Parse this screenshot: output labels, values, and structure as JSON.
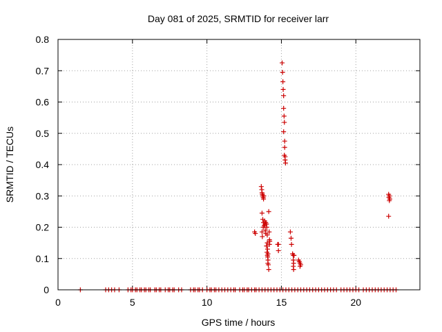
{
  "chart_data": {
    "type": "scatter",
    "title": "Day 081 of 2025, SRMTID for receiver larr",
    "xlabel": "GPS time / hours",
    "ylabel": "SRMTID / TECUs",
    "xlim": [
      0,
      24.3
    ],
    "ylim": [
      0,
      0.8
    ],
    "xticks": [
      0,
      5,
      10,
      15,
      20
    ],
    "yticks": [
      0,
      0.1,
      0.2,
      0.3,
      0.4,
      0.5,
      0.6,
      0.7,
      0.8
    ],
    "xtick_labels": [
      "0",
      "5",
      "10",
      "15",
      "20"
    ],
    "ytick_labels": [
      "0",
      "0.1",
      "0.2",
      "0.3",
      "0.4",
      "0.5",
      "0.6",
      "0.7",
      "0.8"
    ],
    "grid": true,
    "marker": "+",
    "marker_color": "#cc0000",
    "series": [
      {
        "name": "SRMTID",
        "points": [
          [
            1.5,
            0
          ],
          [
            3.2,
            0
          ],
          [
            3.4,
            0
          ],
          [
            3.6,
            0
          ],
          [
            3.8,
            0
          ],
          [
            4.1,
            0
          ],
          [
            4.7,
            0
          ],
          [
            4.9,
            0
          ],
          [
            5.0,
            0
          ],
          [
            5.2,
            0
          ],
          [
            5.3,
            0
          ],
          [
            5.5,
            0
          ],
          [
            5.6,
            0
          ],
          [
            5.8,
            0
          ],
          [
            5.9,
            0
          ],
          [
            6.1,
            0
          ],
          [
            6.2,
            0
          ],
          [
            6.5,
            0
          ],
          [
            6.6,
            0
          ],
          [
            6.8,
            0
          ],
          [
            6.9,
            0
          ],
          [
            7.2,
            0
          ],
          [
            7.4,
            0
          ],
          [
            7.5,
            0
          ],
          [
            7.7,
            0
          ],
          [
            7.8,
            0
          ],
          [
            8.1,
            0
          ],
          [
            8.3,
            0
          ],
          [
            8.9,
            0
          ],
          [
            9.1,
            0
          ],
          [
            9.2,
            0
          ],
          [
            9.4,
            0
          ],
          [
            9.5,
            0
          ],
          [
            9.7,
            0
          ],
          [
            10.0,
            0
          ],
          [
            10.2,
            0
          ],
          [
            10.3,
            0
          ],
          [
            10.5,
            0
          ],
          [
            10.6,
            0
          ],
          [
            10.8,
            0
          ],
          [
            11.0,
            0
          ],
          [
            11.2,
            0
          ],
          [
            11.4,
            0
          ],
          [
            11.6,
            0
          ],
          [
            11.8,
            0
          ],
          [
            11.9,
            0
          ],
          [
            12.2,
            0
          ],
          [
            12.4,
            0
          ],
          [
            12.5,
            0
          ],
          [
            12.7,
            0
          ],
          [
            12.8,
            0
          ],
          [
            13.0,
            0
          ],
          [
            13.2,
            0
          ],
          [
            13.3,
            0
          ],
          [
            13.5,
            0
          ],
          [
            13.7,
            0
          ],
          [
            13.9,
            0
          ],
          [
            14.1,
            0
          ],
          [
            14.3,
            0
          ],
          [
            14.5,
            0
          ],
          [
            14.7,
            0
          ],
          [
            14.9,
            0
          ],
          [
            15.1,
            0
          ],
          [
            15.3,
            0
          ],
          [
            15.5,
            0
          ],
          [
            15.7,
            0
          ],
          [
            15.9,
            0
          ],
          [
            16.1,
            0
          ],
          [
            16.3,
            0
          ],
          [
            16.5,
            0
          ],
          [
            16.7,
            0
          ],
          [
            16.9,
            0
          ],
          [
            17.1,
            0
          ],
          [
            17.3,
            0
          ],
          [
            17.5,
            0
          ],
          [
            17.7,
            0
          ],
          [
            17.9,
            0
          ],
          [
            18.1,
            0
          ],
          [
            18.3,
            0
          ],
          [
            18.5,
            0
          ],
          [
            18.7,
            0
          ],
          [
            19.0,
            0
          ],
          [
            19.2,
            0
          ],
          [
            19.4,
            0
          ],
          [
            19.6,
            0
          ],
          [
            19.8,
            0
          ],
          [
            20.0,
            0
          ],
          [
            20.2,
            0
          ],
          [
            20.5,
            0
          ],
          [
            20.7,
            0
          ],
          [
            20.9,
            0
          ],
          [
            21.1,
            0
          ],
          [
            21.3,
            0
          ],
          [
            21.5,
            0
          ],
          [
            21.7,
            0
          ],
          [
            21.9,
            0
          ],
          [
            22.1,
            0
          ],
          [
            22.3,
            0
          ],
          [
            22.5,
            0
          ],
          [
            22.7,
            0
          ],
          [
            13.2,
            0.185
          ],
          [
            13.25,
            0.18
          ],
          [
            13.65,
            0.33
          ],
          [
            13.68,
            0.32
          ],
          [
            13.7,
            0.31
          ],
          [
            13.72,
            0.305
          ],
          [
            13.75,
            0.3
          ],
          [
            13.78,
            0.295
          ],
          [
            13.8,
            0.29
          ],
          [
            13.82,
            0.3
          ],
          [
            13.7,
            0.245
          ],
          [
            13.75,
            0.225
          ],
          [
            13.8,
            0.215
          ],
          [
            13.85,
            0.205
          ],
          [
            13.88,
            0.22
          ],
          [
            13.9,
            0.21
          ],
          [
            13.92,
            0.19
          ],
          [
            13.95,
            0.18
          ],
          [
            13.7,
            0.185
          ],
          [
            13.72,
            0.17
          ],
          [
            13.78,
            0.2
          ],
          [
            13.95,
            0.215
          ],
          [
            14.0,
            0.21
          ],
          [
            14.02,
            0.2
          ],
          [
            14.05,
            0.175
          ],
          [
            14.05,
            0.15
          ],
          [
            14.07,
            0.13
          ],
          [
            14.1,
            0.115
          ],
          [
            14.08,
            0.105
          ],
          [
            14.1,
            0.095
          ],
          [
            14.12,
            0.08
          ],
          [
            14.15,
            0.065
          ],
          [
            14.0,
            0.14
          ],
          [
            14.03,
            0.12
          ],
          [
            14.06,
            0.11
          ],
          [
            14.09,
            0.085
          ],
          [
            14.15,
            0.25
          ],
          [
            14.18,
            0.185
          ],
          [
            14.2,
            0.16
          ],
          [
            14.2,
            0.145
          ],
          [
            14.22,
            0.155
          ],
          [
            14.75,
            0.145
          ],
          [
            14.8,
            0.145
          ],
          [
            14.8,
            0.125
          ],
          [
            15.05,
            0.725
          ],
          [
            15.08,
            0.695
          ],
          [
            15.1,
            0.665
          ],
          [
            15.12,
            0.64
          ],
          [
            15.15,
            0.62
          ],
          [
            15.15,
            0.58
          ],
          [
            15.18,
            0.555
          ],
          [
            15.2,
            0.535
          ],
          [
            15.15,
            0.505
          ],
          [
            15.22,
            0.475
          ],
          [
            15.22,
            0.455
          ],
          [
            15.2,
            0.43
          ],
          [
            15.25,
            0.425
          ],
          [
            15.25,
            0.415
          ],
          [
            15.28,
            0.405
          ],
          [
            15.6,
            0.185
          ],
          [
            15.65,
            0.165
          ],
          [
            15.68,
            0.145
          ],
          [
            15.75,
            0.115
          ],
          [
            15.8,
            0.11
          ],
          [
            15.85,
            0.11
          ],
          [
            15.8,
            0.095
          ],
          [
            15.82,
            0.085
          ],
          [
            15.8,
            0.075
          ],
          [
            15.82,
            0.065
          ],
          [
            16.15,
            0.095
          ],
          [
            16.2,
            0.09
          ],
          [
            16.25,
            0.085
          ],
          [
            16.3,
            0.08
          ],
          [
            16.25,
            0.075
          ],
          [
            22.2,
            0.305
          ],
          [
            22.25,
            0.3
          ],
          [
            22.22,
            0.295
          ],
          [
            22.28,
            0.29
          ],
          [
            22.25,
            0.285
          ],
          [
            22.2,
            0.235
          ]
        ]
      }
    ]
  }
}
